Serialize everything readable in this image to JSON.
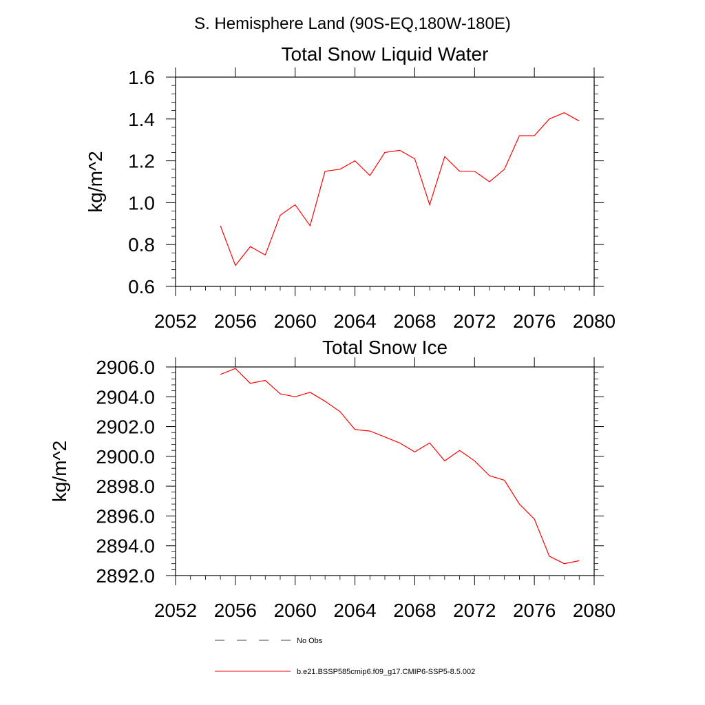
{
  "figure": {
    "suptitle": "S. Hemisphere Land (90S-EQ,180W-180E)"
  },
  "chart_data": [
    {
      "type": "line",
      "title": "Total Snow Liquid Water",
      "xlabel": "",
      "ylabel": "kg/m^2",
      "xlim": [
        2052,
        2080
      ],
      "ylim": [
        0.6,
        1.6
      ],
      "x_ticks": [
        2052,
        2056,
        2060,
        2064,
        2068,
        2072,
        2076,
        2080
      ],
      "x_tick_labels": [
        "2052",
        "2056",
        "2060",
        "2064",
        "2068",
        "2072",
        "2076",
        "2080"
      ],
      "y_ticks": [
        0.6,
        0.8,
        1.0,
        1.2,
        1.4,
        1.6
      ],
      "y_tick_labels": [
        "0.6",
        "0.8",
        "1.0",
        "1.2",
        "1.4",
        "1.6"
      ],
      "grid": false,
      "x": [
        2055,
        2056,
        2057,
        2058,
        2059,
        2060,
        2061,
        2062,
        2063,
        2064,
        2065,
        2066,
        2067,
        2068,
        2069,
        2070,
        2071,
        2072,
        2073,
        2074,
        2075,
        2076,
        2077,
        2078,
        2079
      ],
      "series": [
        {
          "name": "b.e21.BSSP585cmip6.f09_g17.CMIP6-SSP5-8.5.002",
          "color": "#ff0000",
          "values": [
            0.89,
            0.7,
            0.79,
            0.75,
            0.94,
            0.99,
            0.89,
            1.15,
            1.16,
            1.2,
            1.13,
            1.24,
            1.25,
            1.21,
            0.99,
            1.22,
            1.15,
            1.15,
            1.1,
            1.16,
            1.32,
            1.32,
            1.4,
            1.43,
            1.39
          ]
        }
      ]
    },
    {
      "type": "line",
      "title": "Total Snow Ice",
      "xlabel": "",
      "ylabel": "kg/m^2",
      "xlim": [
        2052,
        2080
      ],
      "ylim": [
        2892.0,
        2906.0
      ],
      "x_ticks": [
        2052,
        2056,
        2060,
        2064,
        2068,
        2072,
        2076,
        2080
      ],
      "x_tick_labels": [
        "2052",
        "2056",
        "2060",
        "2064",
        "2068",
        "2072",
        "2076",
        "2080"
      ],
      "y_ticks": [
        2892.0,
        2894.0,
        2896.0,
        2898.0,
        2900.0,
        2902.0,
        2904.0,
        2906.0
      ],
      "y_tick_labels": [
        "2892.0",
        "2894.0",
        "2896.0",
        "2898.0",
        "2900.0",
        "2902.0",
        "2904.0",
        "2906.0"
      ],
      "grid": false,
      "x": [
        2055,
        2056,
        2057,
        2058,
        2059,
        2060,
        2061,
        2062,
        2063,
        2064,
        2065,
        2066,
        2067,
        2068,
        2069,
        2070,
        2071,
        2072,
        2073,
        2074,
        2075,
        2076,
        2077,
        2078,
        2079
      ],
      "series": [
        {
          "name": "b.e21.BSSP585cmip6.f09_g17.CMIP6-SSP5-8.5.002",
          "color": "#ff0000",
          "values": [
            2905.5,
            2905.9,
            2904.9,
            2905.1,
            2904.2,
            2904.0,
            2904.3,
            2903.7,
            2903.0,
            2901.8,
            2901.7,
            2901.3,
            2900.9,
            2900.3,
            2900.9,
            2899.7,
            2900.4,
            2899.7,
            2898.7,
            2898.4,
            2896.8,
            2895.8,
            2893.3,
            2892.8,
            2893.0
          ]
        }
      ]
    }
  ],
  "legend": {
    "entries": [
      {
        "label": "No Obs",
        "color": "#3b3b7a",
        "style": "dashed"
      },
      {
        "label": "b.e21.BSSP585cmip6.f09_g17.CMIP6-SSP5-8.5.002",
        "color": "#ff0000",
        "style": "solid"
      }
    ]
  }
}
